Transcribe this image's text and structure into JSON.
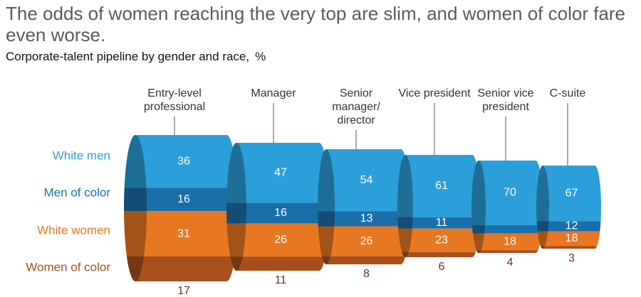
{
  "title": "The odds of women reaching the very top are slim, and women of color fare even worse.",
  "chart_data": {
    "type": "pipeline",
    "subtitle": "Corporate-talent pipeline by gender and race,",
    "unit": "%",
    "categories": [
      "Entry-level professional",
      "Manager",
      "Senior manager/ director",
      "Vice president",
      "Senior vice president",
      "C-suite"
    ],
    "series": [
      {
        "name": "White men",
        "color": "#2b9fd9",
        "values": [
          36,
          47,
          54,
          61,
          70,
          67
        ]
      },
      {
        "name": "Men of color",
        "color": "#1b6fa8",
        "values": [
          16,
          16,
          13,
          11,
          9,
          12
        ]
      },
      {
        "name": "White women",
        "color": "#e87722",
        "values": [
          31,
          26,
          26,
          23,
          18,
          18
        ]
      },
      {
        "name": "Women of color",
        "color": "#a8501c",
        "values": [
          17,
          11,
          8,
          6,
          4,
          3
        ]
      }
    ]
  }
}
